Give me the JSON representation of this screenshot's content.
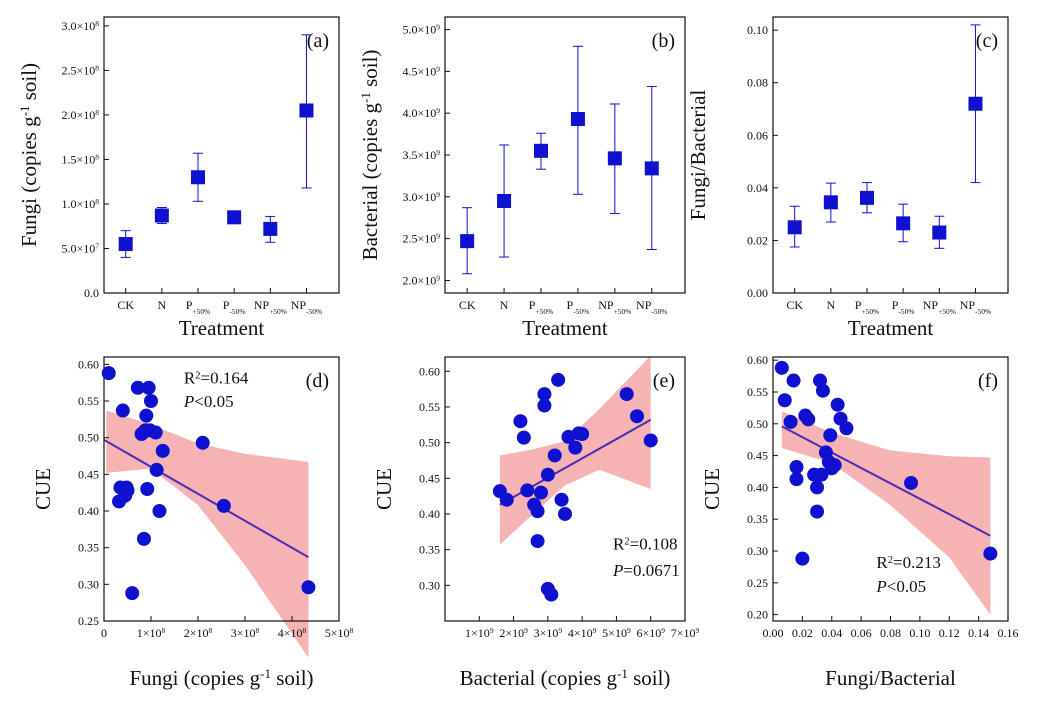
{
  "figure": {
    "colors": {
      "marker": "#1010d0",
      "line": "#4b2bb5",
      "band": "#f4a6a6",
      "axis": "#111111"
    }
  },
  "chart_data": [
    {
      "id": "a",
      "type": "scatter",
      "panel_label": "(a)",
      "title": "",
      "xlabel": "Treatment",
      "ylabel": "Fungi (copies g<sup>-1</sup> soil)",
      "ylabel_parts": [
        {
          "t": "Fungi (copies g"
        },
        {
          "t": "-1",
          "sup": true
        },
        {
          "t": " soil)"
        }
      ],
      "categories": [
        [
          {
            "t": "CK"
          }
        ],
        [
          {
            "t": "N"
          }
        ],
        [
          {
            "t": "P"
          },
          {
            "t": "+50%",
            "sub": true
          }
        ],
        [
          {
            "t": "P"
          },
          {
            "t": "-50%",
            "sub": true
          }
        ],
        [
          {
            "t": "NP"
          },
          {
            "t": "+50%",
            "sub": true
          }
        ],
        [
          {
            "t": "NP"
          },
          {
            "t": "-50%",
            "sub": true
          }
        ]
      ],
      "values": [
        55000000,
        87000000,
        130000000,
        85000000,
        72000000,
        205000000
      ],
      "err_low": [
        40000000,
        78000000,
        103000000,
        82000000,
        57000000,
        118000000
      ],
      "err_high": [
        70000000,
        96000000,
        157000000,
        88000000,
        86000000,
        290000000
      ],
      "ylim": [
        0,
        310000000
      ],
      "yticks": [
        0,
        50000000,
        100000000,
        150000000,
        200000000,
        250000000,
        300000000
      ],
      "ytick_labels": [
        [
          {
            "t": "0.0"
          }
        ],
        [
          {
            "t": "5.0×10"
          },
          {
            "t": "7",
            "sup": true
          }
        ],
        [
          {
            "t": "1.0×10"
          },
          {
            "t": "8",
            "sup": true
          }
        ],
        [
          {
            "t": "1.5×10"
          },
          {
            "t": "8",
            "sup": true
          }
        ],
        [
          {
            "t": "2.0×10"
          },
          {
            "t": "8",
            "sup": true
          }
        ],
        [
          {
            "t": "2.5×10"
          },
          {
            "t": "8",
            "sup": true
          }
        ],
        [
          {
            "t": "3.0×10"
          },
          {
            "t": "8",
            "sup": true
          }
        ]
      ]
    },
    {
      "id": "b",
      "type": "scatter",
      "panel_label": "(b)",
      "title": "",
      "xlabel": "Treatment",
      "ylabel_parts": [
        {
          "t": "Bacterial (copies g"
        },
        {
          "t": "-1",
          "sup": true
        },
        {
          "t": " soil)"
        }
      ],
      "categories": [
        [
          {
            "t": "CK"
          }
        ],
        [
          {
            "t": "N"
          }
        ],
        [
          {
            "t": "P"
          },
          {
            "t": "+50%",
            "sub": true
          }
        ],
        [
          {
            "t": "P"
          },
          {
            "t": "-50%",
            "sub": true
          }
        ],
        [
          {
            "t": "NP"
          },
          {
            "t": "+50%",
            "sub": true
          }
        ],
        [
          {
            "t": "NP"
          },
          {
            "t": "-50%",
            "sub": true
          }
        ]
      ],
      "values": [
        2470000000,
        2950000000,
        3550000000,
        3930000000,
        3460000000,
        3340000000
      ],
      "err_low": [
        2080000000,
        2280000000,
        3330000000,
        3030000000,
        2800000000,
        2370000000
      ],
      "err_high": [
        2870000000,
        3620000000,
        3760000000,
        4800000000,
        4110000000,
        4320000000
      ],
      "ylim": [
        1850000000,
        5150000000
      ],
      "yticks": [
        2000000000,
        2500000000,
        3000000000,
        3500000000,
        4000000000,
        4500000000,
        5000000000
      ],
      "ytick_labels": [
        [
          {
            "t": "2.0×10"
          },
          {
            "t": "9",
            "sup": true
          }
        ],
        [
          {
            "t": "2.5×10"
          },
          {
            "t": "9",
            "sup": true
          }
        ],
        [
          {
            "t": "3.0×10"
          },
          {
            "t": "9",
            "sup": true
          }
        ],
        [
          {
            "t": "3.5×10"
          },
          {
            "t": "9",
            "sup": true
          }
        ],
        [
          {
            "t": "4.0×10"
          },
          {
            "t": "9",
            "sup": true
          }
        ],
        [
          {
            "t": "4.5×10"
          },
          {
            "t": "9",
            "sup": true
          }
        ],
        [
          {
            "t": "5.0×10"
          },
          {
            "t": "9",
            "sup": true
          }
        ]
      ]
    },
    {
      "id": "c",
      "type": "scatter",
      "panel_label": "(c)",
      "title": "",
      "xlabel": "Treatment",
      "ylabel_parts": [
        {
          "t": "Fungi/Bacterial"
        }
      ],
      "categories": [
        [
          {
            "t": "CK"
          }
        ],
        [
          {
            "t": "N"
          }
        ],
        [
          {
            "t": "P"
          },
          {
            "t": "+50%",
            "sub": true
          }
        ],
        [
          {
            "t": "P"
          },
          {
            "t": "-50%",
            "sub": true
          }
        ],
        [
          {
            "t": "NP"
          },
          {
            "t": "+50%",
            "sub": true
          }
        ],
        [
          {
            "t": "NP"
          },
          {
            "t": "-50%",
            "sub": true
          }
        ]
      ],
      "values": [
        0.025,
        0.0345,
        0.0362,
        0.0265,
        0.023,
        0.072
      ],
      "err_low": [
        0.0175,
        0.027,
        0.0305,
        0.0195,
        0.017,
        0.042
      ],
      "err_high": [
        0.033,
        0.0418,
        0.042,
        0.0338,
        0.0292,
        0.102
      ],
      "ylim": [
        0,
        0.105
      ],
      "yticks": [
        0,
        0.02,
        0.04,
        0.06,
        0.08,
        0.1
      ],
      "ytick_labels": [
        [
          {
            "t": "0.00"
          }
        ],
        [
          {
            "t": "0.02"
          }
        ],
        [
          {
            "t": "0.04"
          }
        ],
        [
          {
            "t": "0.06"
          }
        ],
        [
          {
            "t": "0.08"
          }
        ],
        [
          {
            "t": "0.10"
          }
        ]
      ]
    },
    {
      "id": "d",
      "type": "scatter",
      "panel_label": "(d)",
      "title": "",
      "xlabel_parts": [
        {
          "t": "Fungi (copies g"
        },
        {
          "t": "-1",
          "sup": true
        },
        {
          "t": " soil)"
        }
      ],
      "ylabel": "CUE",
      "xlim": [
        0,
        500000000
      ],
      "ylim": [
        0.25,
        0.61
      ],
      "xticks": [
        0,
        100000000,
        200000000,
        300000000,
        400000000,
        500000000
      ],
      "xtick_labels": [
        [
          {
            "t": "0"
          }
        ],
        [
          {
            "t": "1×10"
          },
          {
            "t": "8",
            "sup": true
          }
        ],
        [
          {
            "t": "2×10"
          },
          {
            "t": "8",
            "sup": true
          }
        ],
        [
          {
            "t": "3×10"
          },
          {
            "t": "8",
            "sup": true
          }
        ],
        [
          {
            "t": "4×10"
          },
          {
            "t": "8",
            "sup": true
          }
        ],
        [
          {
            "t": "5×10"
          },
          {
            "t": "8",
            "sup": true
          }
        ]
      ],
      "yticks": [
        0.25,
        0.3,
        0.35,
        0.4,
        0.45,
        0.5,
        0.55,
        0.6
      ],
      "ytick_labels": [
        [
          {
            "t": "0.25"
          }
        ],
        [
          {
            "t": "0.30"
          }
        ],
        [
          {
            "t": "0.35"
          }
        ],
        [
          {
            "t": "0.40"
          }
        ],
        [
          {
            "t": "0.45"
          }
        ],
        [
          {
            "t": "0.50"
          }
        ],
        [
          {
            "t": "0.55"
          }
        ],
        [
          {
            "t": "0.60"
          }
        ]
      ],
      "x": [
        10000000,
        40000000,
        35000000,
        48000000,
        32000000,
        45000000,
        50000000,
        72000000,
        60000000,
        95000000,
        100000000,
        90000000,
        88000000,
        92000000,
        98000000,
        110000000,
        85000000,
        92000000,
        112000000,
        125000000,
        118000000,
        80000000,
        210000000,
        255000000,
        435000000
      ],
      "y": [
        0.588,
        0.537,
        0.432,
        0.432,
        0.413,
        0.421,
        0.428,
        0.568,
        0.288,
        0.568,
        0.55,
        0.53,
        0.51,
        0.51,
        0.51,
        0.507,
        0.362,
        0.43,
        0.456,
        0.482,
        0.4,
        0.505,
        0.493,
        0.407,
        0.296
      ],
      "fit": {
        "x0": 0,
        "y0": 0.497,
        "x1": 435000000,
        "y1": 0.337
      },
      "band": [
        [
          5000000,
          0.537,
          0.452
        ],
        [
          100000000,
          0.518,
          0.458
        ],
        [
          200000000,
          0.492,
          0.408
        ],
        [
          300000000,
          0.478,
          0.326
        ],
        [
          435000000,
          0.467,
          0.2
        ]
      ],
      "annotations": [
        {
          "parts": [
            {
              "t": "R"
            },
            {
              "t": "2",
              "sup": true
            },
            {
              "t": "=0.164"
            }
          ],
          "ax": 0.34,
          "ay": 0.1
        },
        {
          "parts": [
            {
              "t": "P",
              "i": true
            },
            {
              "t": "<0.05"
            }
          ],
          "ax": 0.34,
          "ay": 0.19
        }
      ]
    },
    {
      "id": "e",
      "type": "scatter",
      "panel_label": "(e)",
      "title": "",
      "xlabel_parts": [
        {
          "t": "Bacterial (copies g"
        },
        {
          "t": "-1",
          "sup": true
        },
        {
          "t": " soil)"
        }
      ],
      "ylabel": "CUE",
      "xlim": [
        0,
        7000000000
      ],
      "ylim": [
        0.25,
        0.62
      ],
      "xticks": [
        1000000000,
        2000000000,
        3000000000,
        4000000000,
        5000000000,
        6000000000,
        7000000000
      ],
      "xtick_labels": [
        [
          {
            "t": "1×10"
          },
          {
            "t": "9",
            "sup": true
          }
        ],
        [
          {
            "t": "2×10"
          },
          {
            "t": "9",
            "sup": true
          }
        ],
        [
          {
            "t": "3×10"
          },
          {
            "t": "9",
            "sup": true
          }
        ],
        [
          {
            "t": "4×10"
          },
          {
            "t": "9",
            "sup": true
          }
        ],
        [
          {
            "t": "5×10"
          },
          {
            "t": "9",
            "sup": true
          }
        ],
        [
          {
            "t": "6×10"
          },
          {
            "t": "9",
            "sup": true
          }
        ],
        [
          {
            "t": "7×10"
          },
          {
            "t": "9",
            "sup": true
          }
        ]
      ],
      "yticks": [
        0.3,
        0.35,
        0.4,
        0.45,
        0.5,
        0.55,
        0.6
      ],
      "ytick_labels": [
        [
          {
            "t": "0.30"
          }
        ],
        [
          {
            "t": "0.35"
          }
        ],
        [
          {
            "t": "0.40"
          }
        ],
        [
          {
            "t": "0.45"
          }
        ],
        [
          {
            "t": "0.50"
          }
        ],
        [
          {
            "t": "0.55"
          }
        ],
        [
          {
            "t": "0.60"
          }
        ]
      ],
      "x": [
        1600000000,
        1800000000,
        2200000000,
        2300000000,
        2400000000,
        2600000000,
        2700000000,
        2800000000,
        2900000000,
        3000000000,
        3000000000,
        3100000000,
        3200000000,
        3300000000,
        3400000000,
        3500000000,
        3600000000,
        3800000000,
        3900000000,
        4000000000,
        5300000000,
        5600000000,
        6000000000,
        2700000000,
        2900000000
      ],
      "y": [
        0.432,
        0.42,
        0.53,
        0.507,
        0.433,
        0.413,
        0.404,
        0.43,
        0.568,
        0.295,
        0.455,
        0.287,
        0.482,
        0.588,
        0.42,
        0.4,
        0.508,
        0.493,
        0.513,
        0.512,
        0.568,
        0.537,
        0.503,
        0.362,
        0.552
      ],
      "fit": {
        "x0": 1600000000,
        "y0": 0.413,
        "x1": 6000000000,
        "y1": 0.532
      },
      "band": [
        [
          1600000000,
          0.482,
          0.357
        ],
        [
          2500000000,
          0.49,
          0.397
        ],
        [
          3500000000,
          0.502,
          0.44
        ],
        [
          4500000000,
          0.547,
          0.462
        ],
        [
          6000000000,
          0.622,
          0.435
        ]
      ],
      "annotations": [
        {
          "parts": [
            {
              "t": "R"
            },
            {
              "t": "2",
              "sup": true
            },
            {
              "t": "=0.108"
            }
          ],
          "ax": 0.7,
          "ay": 0.73
        },
        {
          "parts": [
            {
              "t": "P",
              "i": true
            },
            {
              "t": "=0.0671"
            }
          ],
          "ax": 0.7,
          "ay": 0.83
        }
      ]
    },
    {
      "id": "f",
      "type": "scatter",
      "panel_label": "(f)",
      "title": "",
      "xlabel": "Fungi/Bacterial",
      "ylabel": "CUE",
      "xlim": [
        0,
        0.16
      ],
      "ylim": [
        0.19,
        0.605
      ],
      "xticks": [
        0,
        0.02,
        0.04,
        0.06,
        0.08,
        0.1,
        0.12,
        0.14,
        0.16
      ],
      "xtick_labels": [
        [
          {
            "t": "0.00"
          }
        ],
        [
          {
            "t": "0.02"
          }
        ],
        [
          {
            "t": "0.04"
          }
        ],
        [
          {
            "t": "0.06"
          }
        ],
        [
          {
            "t": "0.08"
          }
        ],
        [
          {
            "t": "0.10"
          }
        ],
        [
          {
            "t": "0.12"
          }
        ],
        [
          {
            "t": "0.14"
          }
        ],
        [
          {
            "t": "0.16"
          }
        ]
      ],
      "yticks": [
        0.2,
        0.25,
        0.3,
        0.35,
        0.4,
        0.45,
        0.5,
        0.55,
        0.6
      ],
      "ytick_labels": [
        [
          {
            "t": "0.20"
          }
        ],
        [
          {
            "t": "0.25"
          }
        ],
        [
          {
            "t": "0.30"
          }
        ],
        [
          {
            "t": "0.35"
          }
        ],
        [
          {
            "t": "0.40"
          }
        ],
        [
          {
            "t": "0.45"
          }
        ],
        [
          {
            "t": "0.50"
          }
        ],
        [
          {
            "t": "0.55"
          }
        ],
        [
          {
            "t": "0.60"
          }
        ]
      ],
      "x": [
        0.006,
        0.008,
        0.012,
        0.014,
        0.016,
        0.016,
        0.02,
        0.022,
        0.024,
        0.028,
        0.03,
        0.03,
        0.032,
        0.033,
        0.034,
        0.036,
        0.038,
        0.039,
        0.04,
        0.042,
        0.044,
        0.046,
        0.05,
        0.094,
        0.148
      ],
      "y": [
        0.588,
        0.537,
        0.503,
        0.568,
        0.432,
        0.413,
        0.288,
        0.513,
        0.507,
        0.42,
        0.362,
        0.4,
        0.568,
        0.42,
        0.552,
        0.455,
        0.44,
        0.482,
        0.43,
        0.435,
        0.53,
        0.508,
        0.493,
        0.407,
        0.296
      ],
      "fit": {
        "x0": 0.006,
        "y0": 0.496,
        "x1": 0.148,
        "y1": 0.324
      },
      "band": [
        [
          0.006,
          0.52,
          0.462
        ],
        [
          0.04,
          0.486,
          0.438
        ],
        [
          0.08,
          0.458,
          0.372
        ],
        [
          0.12,
          0.449,
          0.29
        ],
        [
          0.148,
          0.447,
          0.2
        ]
      ],
      "annotations": [
        {
          "parts": [
            {
              "t": "R"
            },
            {
              "t": "2",
              "sup": true
            },
            {
              "t": "=0.213"
            }
          ],
          "ax": 0.44,
          "ay": 0.8
        },
        {
          "parts": [
            {
              "t": "P",
              "i": true
            },
            {
              "t": "<0.05"
            }
          ],
          "ax": 0.44,
          "ay": 0.89
        }
      ]
    }
  ]
}
